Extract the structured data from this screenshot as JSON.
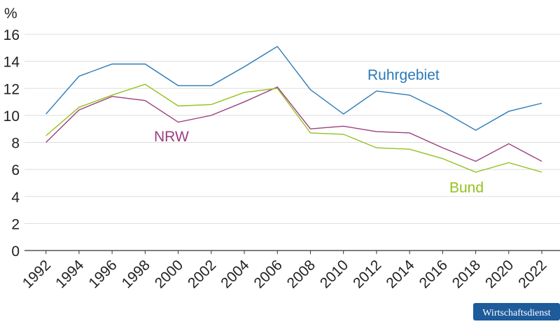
{
  "chart_data": {
    "type": "line",
    "y_label": "%",
    "x": [
      1992,
      1994,
      1996,
      1998,
      2000,
      2002,
      2004,
      2006,
      2008,
      2010,
      2012,
      2014,
      2016,
      2018,
      2020,
      2022
    ],
    "series": [
      {
        "name": "Ruhrgebiet",
        "color": "#2a7ab8",
        "values": [
          10.1,
          12.9,
          13.8,
          13.8,
          12.2,
          12.2,
          13.6,
          15.1,
          11.9,
          10.1,
          11.8,
          11.5,
          10.3,
          8.9,
          10.3,
          10.9
        ]
      },
      {
        "name": "NRW",
        "color": "#9b3f7f",
        "values": [
          8.0,
          10.4,
          11.4,
          11.1,
          9.5,
          10.0,
          11.0,
          12.1,
          9.0,
          9.2,
          8.8,
          8.7,
          7.6,
          6.6,
          7.9,
          6.6
        ]
      },
      {
        "name": "Bund",
        "color": "#95c11f",
        "values": [
          8.5,
          10.6,
          11.5,
          12.3,
          10.7,
          10.8,
          11.7,
          12.0,
          8.7,
          8.6,
          7.6,
          7.5,
          6.8,
          5.8,
          6.5,
          5.8
        ]
      }
    ],
    "xlim": [
      1990.7,
      2023.1
    ],
    "xticks": [
      1992,
      1994,
      1996,
      1998,
      2000,
      2002,
      2004,
      2006,
      2008,
      2010,
      2012,
      2014,
      2016,
      2018,
      2020,
      2022
    ],
    "ylim": [
      0,
      16
    ],
    "yticks": [
      0,
      2,
      4,
      6,
      8,
      10,
      12,
      14,
      16
    ],
    "grid": true,
    "credit": "Wirtschaftsdienst"
  }
}
